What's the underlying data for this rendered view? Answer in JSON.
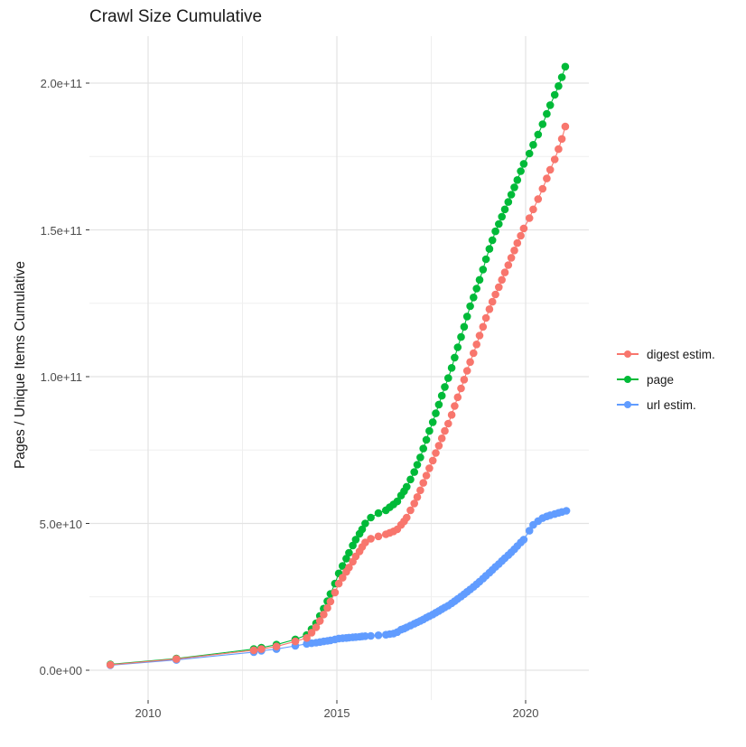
{
  "title": "Crawl Size Cumulative",
  "y_axis": {
    "label": "Pages / Unique Items Cumulative",
    "tick_labels": [
      "0.0e+00",
      "5.0e+10",
      "1.0e+11",
      "1.5e+11",
      "2.0e+11"
    ],
    "tick_values": [
      0,
      50000000000.0,
      100000000000.0,
      150000000000.0,
      200000000000.0
    ],
    "minor_values": [
      25000000000.0,
      75000000000.0,
      125000000000.0,
      175000000000.0
    ]
  },
  "x_axis": {
    "tick_labels": [
      "2010",
      "2015",
      "2020"
    ],
    "tick_values": [
      2010,
      2015,
      2020
    ],
    "minor_values": [
      2012.5,
      2017.5
    ]
  },
  "legend": {
    "position": "right",
    "items": [
      {
        "label": "digest estim.",
        "color": "#F8766D"
      },
      {
        "label": "page",
        "color": "#00BA38"
      },
      {
        "label": "url estim.",
        "color": "#619CFF"
      }
    ]
  },
  "chart_data": {
    "type": "line",
    "marker": "point",
    "title": "Crawl Size Cumulative",
    "xlabel": "",
    "ylabel": "Pages / Unique Items Cumulative",
    "xlim": [
      2008.5,
      2021.7
    ],
    "ylim": [
      0,
      215000000000.0
    ],
    "grid": true,
    "legend_position": "right",
    "x_unit": "year (crawl date)",
    "value_scale": 1000000000.0,
    "series": [
      {
        "name": "page",
        "color": "#00BA38",
        "points": [
          [
            2009.0,
            2.0
          ],
          [
            2010.75,
            4.0
          ],
          [
            2012.8,
            7.2
          ],
          [
            2013.0,
            7.7
          ],
          [
            2013.4,
            8.7
          ],
          [
            2013.9,
            10.5
          ],
          [
            2014.2,
            12
          ],
          [
            2014.33,
            14
          ],
          [
            2014.45,
            16
          ],
          [
            2014.55,
            18.5
          ],
          [
            2014.65,
            21
          ],
          [
            2014.75,
            23.5
          ],
          [
            2014.83,
            26
          ],
          [
            2014.95,
            29.5
          ],
          [
            2015.05,
            33
          ],
          [
            2015.15,
            35.5
          ],
          [
            2015.25,
            38
          ],
          [
            2015.32,
            40
          ],
          [
            2015.42,
            42.5
          ],
          [
            2015.5,
            44.5
          ],
          [
            2015.6,
            46.5
          ],
          [
            2015.67,
            48
          ],
          [
            2015.75,
            50
          ],
          [
            2015.9,
            52
          ],
          [
            2016.1,
            53.5
          ],
          [
            2016.3,
            54.5
          ],
          [
            2016.4,
            55.5
          ],
          [
            2016.5,
            56.5
          ],
          [
            2016.6,
            57.5
          ],
          [
            2016.7,
            59.5
          ],
          [
            2016.78,
            61
          ],
          [
            2016.85,
            62.5
          ],
          [
            2016.95,
            65
          ],
          [
            2017.05,
            67.5
          ],
          [
            2017.13,
            70
          ],
          [
            2017.21,
            72.5
          ],
          [
            2017.29,
            75.5
          ],
          [
            2017.37,
            78.5
          ],
          [
            2017.45,
            81.5
          ],
          [
            2017.54,
            84.5
          ],
          [
            2017.62,
            87.5
          ],
          [
            2017.7,
            90.5
          ],
          [
            2017.78,
            93.5
          ],
          [
            2017.86,
            96.5
          ],
          [
            2017.95,
            99.5
          ],
          [
            2018.04,
            103
          ],
          [
            2018.12,
            106.5
          ],
          [
            2018.2,
            110
          ],
          [
            2018.29,
            113.5
          ],
          [
            2018.37,
            117
          ],
          [
            2018.45,
            120.5
          ],
          [
            2018.53,
            124
          ],
          [
            2018.62,
            127
          ],
          [
            2018.7,
            130
          ],
          [
            2018.78,
            133
          ],
          [
            2018.87,
            136.5
          ],
          [
            2018.95,
            140
          ],
          [
            2019.04,
            143.5
          ],
          [
            2019.12,
            146.5
          ],
          [
            2019.2,
            149.5
          ],
          [
            2019.29,
            152
          ],
          [
            2019.37,
            154.5
          ],
          [
            2019.45,
            157
          ],
          [
            2019.54,
            159.5
          ],
          [
            2019.62,
            162
          ],
          [
            2019.7,
            164.5
          ],
          [
            2019.78,
            167
          ],
          [
            2019.87,
            170
          ],
          [
            2019.95,
            172.5
          ],
          [
            2020.1,
            176
          ],
          [
            2020.2,
            179
          ],
          [
            2020.33,
            182.5
          ],
          [
            2020.45,
            186
          ],
          [
            2020.56,
            189.5
          ],
          [
            2020.65,
            192.5
          ],
          [
            2020.77,
            196
          ],
          [
            2020.87,
            199
          ],
          [
            2020.96,
            202
          ],
          [
            2021.05,
            205.6
          ]
        ]
      },
      {
        "name": "url estim.",
        "color": "#619CFF",
        "points": [
          [
            2009.0,
            1.7
          ],
          [
            2010.75,
            3.5
          ],
          [
            2012.8,
            6.2
          ],
          [
            2013.0,
            6.6
          ],
          [
            2013.4,
            7.2
          ],
          [
            2013.9,
            8.3
          ],
          [
            2014.2,
            9
          ],
          [
            2014.33,
            9.2
          ],
          [
            2014.45,
            9.4
          ],
          [
            2014.55,
            9.6
          ],
          [
            2014.65,
            9.8
          ],
          [
            2014.75,
            10
          ],
          [
            2014.83,
            10.2
          ],
          [
            2014.95,
            10.5
          ],
          [
            2015.05,
            10.8
          ],
          [
            2015.15,
            10.9
          ],
          [
            2015.25,
            11
          ],
          [
            2015.32,
            11.1
          ],
          [
            2015.42,
            11.2
          ],
          [
            2015.5,
            11.3
          ],
          [
            2015.6,
            11.4
          ],
          [
            2015.67,
            11.5
          ],
          [
            2015.75,
            11.6
          ],
          [
            2015.9,
            11.7
          ],
          [
            2016.1,
            11.9
          ],
          [
            2016.3,
            12.1
          ],
          [
            2016.4,
            12.3
          ],
          [
            2016.5,
            12.5
          ],
          [
            2016.6,
            13
          ],
          [
            2016.7,
            13.8
          ],
          [
            2016.78,
            14.2
          ],
          [
            2016.85,
            14.6
          ],
          [
            2016.95,
            15.2
          ],
          [
            2017.05,
            15.8
          ],
          [
            2017.13,
            16.3
          ],
          [
            2017.21,
            16.8
          ],
          [
            2017.29,
            17.3
          ],
          [
            2017.37,
            17.9
          ],
          [
            2017.45,
            18.4
          ],
          [
            2017.54,
            19
          ],
          [
            2017.62,
            19.6
          ],
          [
            2017.7,
            20.2
          ],
          [
            2017.78,
            20.8
          ],
          [
            2017.86,
            21.4
          ],
          [
            2017.95,
            22
          ],
          [
            2018.04,
            22.8
          ],
          [
            2018.12,
            23.5
          ],
          [
            2018.2,
            24.3
          ],
          [
            2018.29,
            25.1
          ],
          [
            2018.37,
            25.9
          ],
          [
            2018.45,
            26.7
          ],
          [
            2018.53,
            27.5
          ],
          [
            2018.62,
            28.4
          ],
          [
            2018.7,
            29.3
          ],
          [
            2018.78,
            30.2
          ],
          [
            2018.87,
            31.2
          ],
          [
            2018.95,
            32.2
          ],
          [
            2019.04,
            33.2
          ],
          [
            2019.12,
            34.2
          ],
          [
            2019.2,
            35.2
          ],
          [
            2019.29,
            36.2
          ],
          [
            2019.37,
            37.2
          ],
          [
            2019.45,
            38.2
          ],
          [
            2019.54,
            39.2
          ],
          [
            2019.62,
            40.2
          ],
          [
            2019.7,
            41.2
          ],
          [
            2019.78,
            42.3
          ],
          [
            2019.87,
            43.5
          ],
          [
            2019.95,
            44.5
          ],
          [
            2020.1,
            47.5
          ],
          [
            2020.2,
            49.5
          ],
          [
            2020.33,
            50.8
          ],
          [
            2020.45,
            51.8
          ],
          [
            2020.56,
            52.4
          ],
          [
            2020.65,
            52.8
          ],
          [
            2020.77,
            53.2
          ],
          [
            2020.87,
            53.6
          ],
          [
            2020.96,
            53.9
          ],
          [
            2021.08,
            54.3
          ]
        ]
      },
      {
        "name": "digest estim.",
        "color": "#F8766D",
        "points": [
          [
            2009.0,
            1.85
          ],
          [
            2010.75,
            3.8
          ],
          [
            2012.8,
            6.8
          ],
          [
            2013.0,
            7.2
          ],
          [
            2013.4,
            8.1
          ],
          [
            2013.9,
            9.8
          ],
          [
            2014.2,
            11
          ],
          [
            2014.33,
            12.8
          ],
          [
            2014.45,
            14.6
          ],
          [
            2014.55,
            16.8
          ],
          [
            2014.65,
            19
          ],
          [
            2014.75,
            21.2
          ],
          [
            2014.83,
            23.4
          ],
          [
            2014.95,
            26.5
          ],
          [
            2015.05,
            29.5
          ],
          [
            2015.15,
            31.5
          ],
          [
            2015.25,
            33.5
          ],
          [
            2015.32,
            35
          ],
          [
            2015.42,
            37
          ],
          [
            2015.5,
            38.8
          ],
          [
            2015.6,
            40.5
          ],
          [
            2015.67,
            42
          ],
          [
            2015.75,
            43.5
          ],
          [
            2015.9,
            44.8
          ],
          [
            2016.1,
            45.6
          ],
          [
            2016.3,
            46.3
          ],
          [
            2016.4,
            46.8
          ],
          [
            2016.5,
            47.3
          ],
          [
            2016.6,
            48
          ],
          [
            2016.7,
            49.5
          ],
          [
            2016.78,
            50.7
          ],
          [
            2016.85,
            52
          ],
          [
            2016.95,
            54.5
          ],
          [
            2017.05,
            56.8
          ],
          [
            2017.13,
            59
          ],
          [
            2017.21,
            61.3
          ],
          [
            2017.29,
            63.8
          ],
          [
            2017.37,
            66.3
          ],
          [
            2017.45,
            68.8
          ],
          [
            2017.54,
            71.4
          ],
          [
            2017.62,
            74
          ],
          [
            2017.7,
            76.5
          ],
          [
            2017.78,
            79
          ],
          [
            2017.86,
            81.5
          ],
          [
            2017.95,
            84
          ],
          [
            2018.04,
            87
          ],
          [
            2018.12,
            90
          ],
          [
            2018.2,
            93
          ],
          [
            2018.29,
            96
          ],
          [
            2018.37,
            99
          ],
          [
            2018.45,
            102
          ],
          [
            2018.53,
            105
          ],
          [
            2018.62,
            108
          ],
          [
            2018.7,
            111
          ],
          [
            2018.78,
            114
          ],
          [
            2018.87,
            117
          ],
          [
            2018.95,
            120
          ],
          [
            2019.04,
            123
          ],
          [
            2019.12,
            125.5
          ],
          [
            2019.2,
            128
          ],
          [
            2019.29,
            130.5
          ],
          [
            2019.37,
            133
          ],
          [
            2019.45,
            135.5
          ],
          [
            2019.54,
            138
          ],
          [
            2019.62,
            140.5
          ],
          [
            2019.7,
            143
          ],
          [
            2019.78,
            145.5
          ],
          [
            2019.87,
            148
          ],
          [
            2019.95,
            150.5
          ],
          [
            2020.1,
            154
          ],
          [
            2020.2,
            157
          ],
          [
            2020.33,
            160.5
          ],
          [
            2020.45,
            164
          ],
          [
            2020.56,
            167.5
          ],
          [
            2020.65,
            170.5
          ],
          [
            2020.77,
            174
          ],
          [
            2020.87,
            177.5
          ],
          [
            2020.96,
            181
          ],
          [
            2021.05,
            185.2
          ]
        ]
      }
    ]
  }
}
